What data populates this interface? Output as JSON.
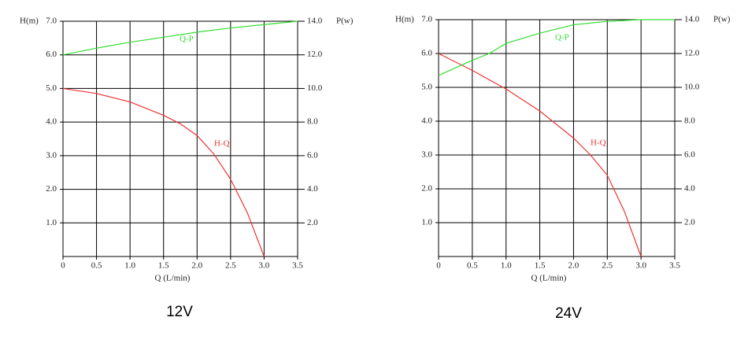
{
  "chart_data": [
    {
      "type": "line",
      "title": "12V",
      "x_label": "Q (L/min)",
      "y_label": "H(m)",
      "y2_label": "P(w)",
      "xlim": [
        0,
        3.5
      ],
      "ylim": [
        0,
        7
      ],
      "y2lim": [
        0,
        14
      ],
      "grid": true,
      "xticks": [
        0,
        0.5,
        {
          "value": 1,
          "label": "1.0"
        },
        1.5,
        {
          "value": 2,
          "label": "2.0"
        },
        2.5,
        {
          "value": 3,
          "label": "3.0"
        },
        3.5
      ],
      "yticks": [
        {
          "value": 1,
          "label": "1.0"
        },
        {
          "value": 2,
          "label": "2.0"
        },
        {
          "value": 3,
          "label": "3.0"
        },
        {
          "value": 4,
          "label": "4.0"
        },
        {
          "value": 5,
          "label": "5.0"
        },
        {
          "value": 6,
          "label": "6.0"
        },
        {
          "value": 7,
          "label": "7.0"
        }
      ],
      "y2ticks": [
        {
          "value": 2,
          "label": "2.0"
        },
        {
          "value": 4,
          "label": "4.0"
        },
        {
          "value": 6,
          "label": "6.0"
        },
        {
          "value": 8,
          "label": "8.0"
        },
        {
          "value": 10,
          "label": "10.0"
        },
        {
          "value": 12,
          "label": "12.0"
        },
        {
          "value": 14,
          "label": "14.0"
        }
      ],
      "series": [
        {
          "name": "H-Q",
          "color": "#ee3333",
          "x": [
            0,
            0.5,
            1,
            1.5,
            1.75,
            2,
            2.25,
            2.5,
            2.75,
            3
          ],
          "values": [
            5.0,
            4.85,
            4.6,
            4.2,
            3.95,
            3.6,
            3.05,
            2.3,
            1.3,
            0
          ]
        },
        {
          "name": "Q-P",
          "color": "#33dd33",
          "axis": "y2",
          "x": [
            0,
            0.5,
            1,
            1.5,
            2,
            2.5,
            3,
            3.5
          ],
          "values": [
            12.0,
            12.4,
            12.75,
            13.05,
            13.35,
            13.6,
            13.8,
            14.0
          ]
        }
      ]
    },
    {
      "type": "line",
      "title": "24V",
      "x_label": "Q (L/min)",
      "y_label": "H(m)",
      "y2_label": "P(w)",
      "xlim": [
        0,
        3.5
      ],
      "ylim": [
        0,
        7
      ],
      "y2lim": [
        0,
        14
      ],
      "grid": true,
      "xticks": [
        0,
        0.5,
        {
          "value": 1,
          "label": "1.0"
        },
        1.5,
        {
          "value": 2,
          "label": "2.0"
        },
        2.5,
        {
          "value": 3,
          "label": "3.0"
        },
        3.5
      ],
      "yticks": [
        {
          "value": 1,
          "label": "1.0"
        },
        {
          "value": 2,
          "label": "2.0"
        },
        {
          "value": 3,
          "label": "3.0"
        },
        {
          "value": 4,
          "label": "4.0"
        },
        {
          "value": 5,
          "label": "5.0"
        },
        {
          "value": 6,
          "label": "6.0"
        },
        {
          "value": 7,
          "label": "7.0"
        }
      ],
      "y2ticks": [
        {
          "value": 2,
          "label": "2.0"
        },
        {
          "value": 4,
          "label": "4.0"
        },
        {
          "value": 6,
          "label": "6.0"
        },
        {
          "value": 8,
          "label": "8.0"
        },
        {
          "value": 10,
          "label": "10.0"
        },
        {
          "value": 12,
          "label": "12.0"
        },
        {
          "value": 14,
          "label": "14.0"
        }
      ],
      "series": [
        {
          "name": "H-Q",
          "color": "#ee3333",
          "x": [
            0,
            0.5,
            1,
            1.5,
            2,
            2.25,
            2.5,
            2.75,
            3
          ],
          "values": [
            6.0,
            5.5,
            4.95,
            4.3,
            3.5,
            3.0,
            2.4,
            1.35,
            0
          ]
        },
        {
          "name": "Q-P",
          "color": "#33dd33",
          "axis": "y2",
          "x": [
            0,
            0.5,
            0.75,
            1,
            1.5,
            2,
            2.5,
            3,
            3.5
          ],
          "values": [
            10.7,
            11.6,
            12.0,
            12.6,
            13.2,
            13.7,
            13.9,
            14.0,
            14.0
          ]
        }
      ]
    }
  ]
}
